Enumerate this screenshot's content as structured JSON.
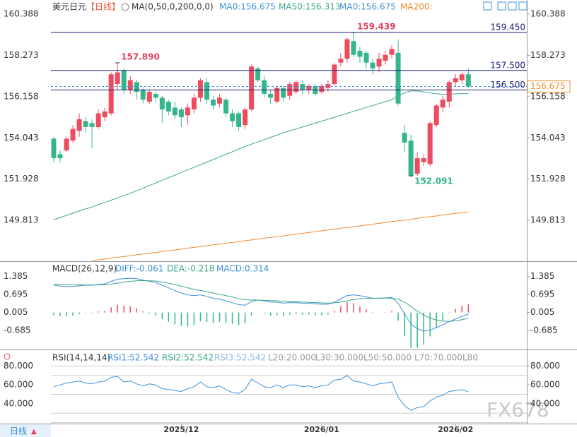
{
  "chart_data": [
    {
      "type": "candlestick",
      "title": "美元日元",
      "period": "【日线】",
      "indicator": "MA(0,50,0,200,0,0)",
      "up_color": "#ef4b5f",
      "down_color": "#35b58e",
      "open": [
        154.0,
        153.2,
        153.4,
        153.9,
        154.4,
        154.9,
        154.8,
        154.6,
        155.1,
        155.3,
        156.8,
        157.5,
        156.5,
        156.9,
        156.5,
        155.9,
        156.3,
        156.1,
        155.9,
        155.6,
        155.5,
        155.2,
        155.5,
        156.1,
        156.9,
        156.0,
        155.8,
        156.0,
        155.3,
        155.3,
        154.7,
        155.5,
        157.6,
        157.0,
        156.3,
        155.9,
        156.6,
        156.2,
        156.4,
        156.8,
        156.5,
        156.7,
        156.4,
        156.6,
        156.8,
        157.9,
        158.1,
        159.0,
        158.5,
        158.4,
        157.9,
        157.7,
        158.0,
        158.3,
        158.4,
        154.3,
        153.9,
        152.2,
        152.8,
        152.7,
        154.7,
        155.6,
        155.9,
        156.9,
        157.0,
        157.3
      ],
      "high": [
        154.1,
        153.4,
        154.1,
        154.7,
        155.3,
        155.1,
        155.0,
        155.5,
        155.6,
        157.4,
        157.89,
        157.6,
        157.2,
        157.0,
        156.6,
        156.5,
        156.4,
        156.2,
        156.0,
        155.9,
        155.6,
        155.8,
        156.3,
        157.1,
        157.1,
        156.2,
        156.3,
        156.1,
        155.5,
        155.4,
        155.6,
        157.8,
        157.7,
        157.2,
        156.5,
        156.7,
        156.7,
        156.9,
        157.0,
        157.0,
        156.8,
        156.8,
        156.8,
        157.0,
        157.9,
        158.4,
        159.2,
        159.439,
        158.7,
        158.5,
        158.1,
        158.4,
        158.5,
        158.8,
        159.1,
        154.7,
        154.2,
        153.3,
        153.2,
        154.9,
        155.8,
        156.2,
        157.0,
        157.3,
        157.4,
        157.6
      ],
      "low": [
        152.8,
        152.8,
        153.3,
        153.8,
        154.1,
        154.3,
        153.5,
        154.5,
        154.9,
        155.2,
        156.5,
        156.3,
        156.3,
        156.0,
        155.8,
        155.8,
        155.9,
        154.8,
        155.2,
        155.0,
        154.6,
        154.7,
        155.3,
        155.9,
        155.8,
        155.5,
        155.6,
        155.1,
        154.6,
        154.4,
        154.5,
        155.4,
        156.9,
        156.1,
        155.8,
        155.8,
        155.9,
        156.0,
        156.3,
        156.3,
        156.3,
        156.2,
        156.3,
        156.4,
        156.7,
        157.7,
        157.9,
        158.2,
        157.9,
        157.6,
        157.3,
        157.4,
        157.8,
        158.1,
        155.7,
        153.3,
        152.091,
        152.1,
        152.6,
        152.6,
        154.6,
        155.4,
        155.6,
        156.7,
        156.8,
        156.6
      ],
      "close": [
        153.0,
        153.0,
        154.0,
        154.5,
        155.0,
        154.6,
        154.6,
        155.3,
        155.4,
        157.3,
        157.4,
        156.5,
        157.0,
        156.4,
        156.0,
        156.4,
        156.1,
        155.5,
        155.4,
        155.2,
        155.1,
        155.6,
        156.1,
        157.0,
        156.0,
        155.7,
        156.1,
        155.3,
        154.9,
        154.6,
        155.5,
        157.7,
        157.0,
        156.3,
        156.1,
        156.6,
        156.1,
        156.8,
        156.9,
        156.5,
        156.7,
        156.3,
        156.7,
        156.8,
        157.8,
        158.1,
        159.1,
        158.3,
        158.2,
        157.9,
        157.6,
        158.1,
        158.3,
        158.6,
        155.8,
        153.8,
        152.1,
        153.0,
        153.0,
        154.8,
        155.7,
        156.0,
        156.9,
        157.1,
        157.3,
        156.675
      ],
      "extra_legend": [
        {
          "name": "MA0:156.675",
          "color": "#3d8fd9"
        },
        {
          "name": "MA0:156.675",
          "color": "#3d8fd9"
        }
      ],
      "series": [
        {
          "name": "MA50:156.313",
          "color": "#3aa68c",
          "values": [
            149.85,
            149.96,
            150.07,
            150.18,
            150.29,
            150.4,
            150.5,
            150.62,
            150.73,
            150.85,
            150.97,
            151.08,
            151.2,
            151.33,
            151.47,
            151.6,
            151.73,
            151.87,
            152.0,
            152.13,
            152.27,
            152.4,
            152.53,
            152.67,
            152.8,
            152.93,
            153.07,
            153.2,
            153.33,
            153.47,
            153.6,
            153.72,
            153.83,
            153.95,
            154.07,
            154.18,
            154.3,
            154.4,
            154.5,
            154.6,
            154.7,
            154.8,
            154.9,
            155.0,
            155.1,
            155.2,
            155.3,
            155.4,
            155.5,
            155.6,
            155.7,
            155.8,
            155.9,
            156.0,
            156.2,
            156.35,
            156.45,
            156.45,
            156.4,
            156.35,
            156.3,
            156.28,
            156.28,
            156.3,
            156.31,
            156.313
          ]
        },
        {
          "name": "MA200:",
          "color": "#f08a2c",
          "values": [
            null,
            null,
            null,
            null,
            null,
            null,
            147.75,
            147.79,
            147.83,
            147.88,
            147.92,
            147.96,
            148.0,
            148.05,
            148.09,
            148.13,
            148.17,
            148.22,
            148.26,
            148.3,
            148.34,
            148.39,
            148.43,
            148.47,
            148.51,
            148.56,
            148.6,
            148.64,
            148.68,
            148.73,
            148.77,
            148.81,
            148.85,
            148.9,
            148.94,
            148.98,
            149.02,
            149.07,
            149.11,
            149.15,
            149.19,
            149.24,
            149.28,
            149.32,
            149.36,
            149.41,
            149.45,
            149.49,
            149.53,
            149.58,
            149.62,
            149.66,
            149.7,
            149.75,
            149.79,
            149.83,
            149.87,
            149.92,
            149.96,
            150.0,
            150.04,
            150.09,
            150.13,
            150.17,
            150.21,
            150.25
          ]
        }
      ],
      "hlines": [
        {
          "value": 159.45,
          "label": "159.450"
        },
        {
          "value": 157.5,
          "label": "157.500"
        },
        {
          "value": 156.5,
          "label": "156.500"
        }
      ],
      "hline_color": "#1a237e",
      "last_price": 156.675,
      "last_color": "#f08a2c",
      "annotations": [
        {
          "x": 47,
          "value": 159.439,
          "color": "#e0405a"
        },
        {
          "x": 10,
          "value": 157.89,
          "label": "157.890",
          "color": "#e0405a"
        },
        {
          "x": 56,
          "value": 152.091,
          "color": "#35b58e"
        }
      ],
      "ylim": [
        147.72,
        161.11
      ],
      "yticks": [
        160.388,
        158.273,
        156.158,
        154.043,
        151.928,
        149.813
      ]
    },
    {
      "type": "macd",
      "title": "MACD(26,12,9)",
      "series": [
        {
          "name": "DIFF:-0.061",
          "color": "#3d8fd9",
          "values": [
            1.05,
            1.02,
            1.0,
            1.0,
            1.03,
            1.05,
            1.05,
            1.08,
            1.1,
            1.2,
            1.28,
            1.3,
            1.32,
            1.3,
            1.25,
            1.2,
            1.15,
            1.05,
            0.95,
            0.85,
            0.75,
            0.68,
            0.65,
            0.68,
            0.62,
            0.55,
            0.52,
            0.45,
            0.38,
            0.3,
            0.28,
            0.42,
            0.48,
            0.45,
            0.4,
            0.4,
            0.36,
            0.38,
            0.38,
            0.36,
            0.35,
            0.33,
            0.32,
            0.32,
            0.4,
            0.52,
            0.65,
            0.68,
            0.65,
            0.6,
            0.55,
            0.55,
            0.56,
            0.58,
            0.35,
            -0.05,
            -0.45,
            -0.62,
            -0.72,
            -0.68,
            -0.58,
            -0.48,
            -0.35,
            -0.25,
            -0.15,
            -0.061
          ]
        },
        {
          "name": "DEA:-0.218",
          "color": "#3aa68c",
          "values": [
            1.1,
            1.09,
            1.07,
            1.06,
            1.06,
            1.06,
            1.06,
            1.06,
            1.07,
            1.1,
            1.13,
            1.17,
            1.2,
            1.22,
            1.23,
            1.22,
            1.21,
            1.18,
            1.13,
            1.08,
            1.01,
            0.95,
            0.89,
            0.85,
            0.8,
            0.75,
            0.7,
            0.65,
            0.6,
            0.54,
            0.49,
            0.48,
            0.48,
            0.47,
            0.46,
            0.45,
            0.43,
            0.42,
            0.41,
            0.4,
            0.39,
            0.38,
            0.37,
            0.36,
            0.37,
            0.4,
            0.45,
            0.5,
            0.53,
            0.54,
            0.54,
            0.55,
            0.55,
            0.55,
            0.51,
            0.4,
            0.23,
            0.06,
            -0.1,
            -0.22,
            -0.29,
            -0.33,
            -0.34,
            -0.32,
            -0.28,
            -0.218
          ]
        }
      ],
      "histogram": {
        "name": "MACD:0.314",
        "color": "#3d8fd9",
        "up_color": "#ef4b5f",
        "down_color": "#35b58e",
        "values": [
          -0.1,
          -0.14,
          -0.14,
          -0.12,
          -0.06,
          -0.02,
          -0.02,
          0.04,
          0.06,
          0.2,
          0.3,
          0.26,
          0.24,
          0.16,
          0.04,
          -0.04,
          -0.12,
          -0.26,
          -0.36,
          -0.46,
          -0.52,
          -0.54,
          -0.48,
          -0.34,
          -0.36,
          -0.4,
          -0.36,
          -0.4,
          -0.44,
          -0.48,
          -0.42,
          -0.12,
          0.0,
          -0.04,
          -0.12,
          -0.1,
          -0.14,
          -0.08,
          -0.06,
          -0.08,
          -0.08,
          -0.1,
          -0.1,
          -0.08,
          0.06,
          0.24,
          0.4,
          0.36,
          0.24,
          0.12,
          0.02,
          0.0,
          0.02,
          0.06,
          -0.32,
          -0.9,
          -1.36,
          -1.36,
          -1.24,
          -0.92,
          -0.58,
          -0.3,
          -0.02,
          0.14,
          0.26,
          0.314
        ]
      },
      "ylim": [
        -1.45,
        1.92
      ],
      "yticks": [
        1.385,
        0.695,
        0.005,
        -0.685
      ]
    },
    {
      "type": "rsi",
      "title": "RSI(14,14,14)",
      "series": [
        {
          "name": "RSI1:52.542",
          "color": "#3d8fd9",
          "values": [
            58,
            60,
            62,
            63,
            64,
            62,
            61,
            63,
            64,
            68,
            69,
            63,
            64,
            61,
            59,
            61,
            60,
            56,
            55,
            54,
            53,
            56,
            58,
            63,
            58,
            57,
            59,
            55,
            52,
            51,
            55,
            66,
            62,
            58,
            57,
            60,
            57,
            60,
            60,
            58,
            59,
            57,
            59,
            60,
            65,
            66,
            70,
            64,
            63,
            61,
            59,
            61,
            62,
            63,
            47,
            38,
            33,
            36,
            37,
            43,
            47,
            49,
            53,
            54,
            55,
            52.542
          ]
        },
        {
          "name": "RSI2:52.542",
          "color": "#3aa68c",
          "values": null
        },
        {
          "name": "RSI3:52.542",
          "color": "#8ab4e8",
          "values": null
        }
      ],
      "levels": [
        {
          "value": 20,
          "label": "L20:20.000"
        },
        {
          "value": 30,
          "label": "L30:30.000"
        },
        {
          "value": 50,
          "label": "L50:50.000"
        },
        {
          "value": 70,
          "label": "L70:70.000"
        },
        {
          "value": 80,
          "label": "L80"
        }
      ],
      "categories": [
        null,
        null,
        null,
        null,
        null,
        null,
        null,
        null,
        null,
        null,
        null,
        null,
        null,
        null,
        null,
        null,
        null,
        null,
        null,
        null,
        "2025/12",
        null,
        null,
        null,
        null,
        null,
        null,
        null,
        null,
        null,
        null,
        null,
        null,
        null,
        null,
        null,
        null,
        null,
        null,
        null,
        null,
        null,
        "2026/01",
        null,
        null,
        null,
        null,
        null,
        null,
        null,
        null,
        null,
        null,
        null,
        null,
        null,
        null,
        null,
        null,
        null,
        null,
        null,
        null,
        "2026/02",
        null,
        null
      ],
      "ylim": [
        19,
        96
      ],
      "yticks": [
        {
          "value": 80,
          "label": "80.000"
        },
        {
          "value": 60,
          "label": "60.000"
        },
        {
          "value": 40,
          "label": "40.000"
        }
      ]
    }
  ],
  "period_button": "日线",
  "watermark": "FX678"
}
